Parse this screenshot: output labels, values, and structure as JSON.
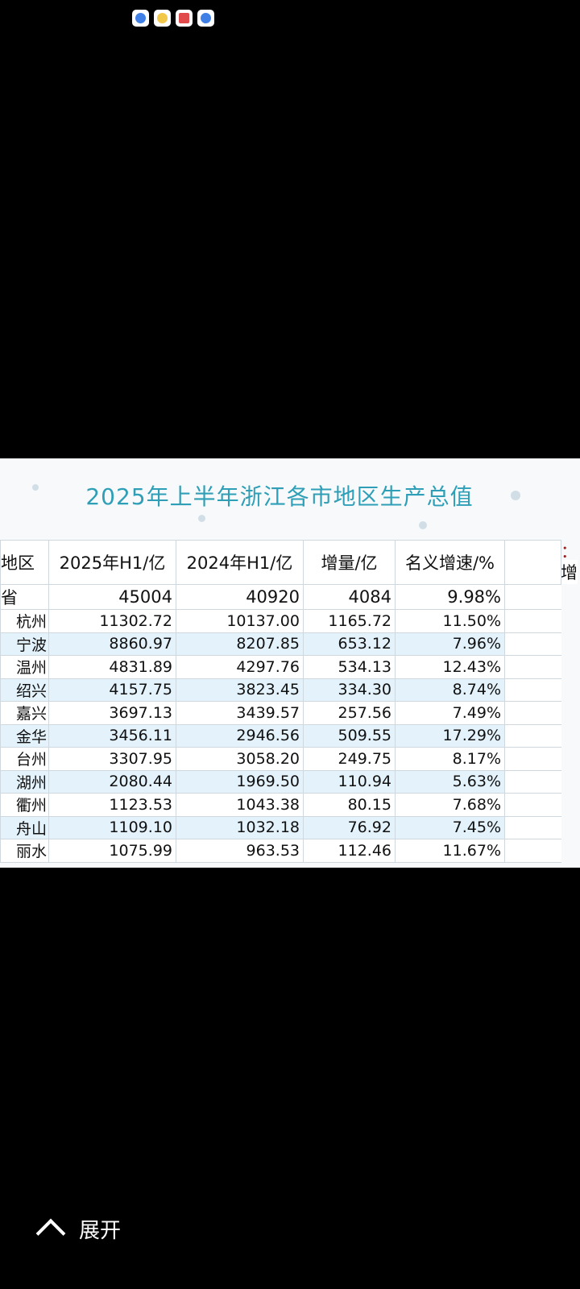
{
  "status_icons": [
    "browser-icon",
    "weather-icon",
    "news-icon",
    "browser-icon"
  ],
  "table": {
    "title": "2025年上半年浙江各市地区生产总值",
    "side_label": "制表：",
    "side_label2": "实际增",
    "headers": [
      "地区",
      "2025年H1/亿",
      "2024年H1/亿",
      "增量/亿",
      "名义增速/%"
    ],
    "province": {
      "region": "省",
      "h1_2025": "45004",
      "h1_2024": "40920",
      "increase": "4084",
      "growth": "9.98%"
    },
    "rows": [
      {
        "region": "杭州",
        "h1_2025": "11302.72",
        "h1_2024": "10137.00",
        "increase": "1165.72",
        "growth": "11.50%"
      },
      {
        "region": "宁波",
        "h1_2025": "8860.97",
        "h1_2024": "8207.85",
        "increase": "653.12",
        "growth": "7.96%"
      },
      {
        "region": "温州",
        "h1_2025": "4831.89",
        "h1_2024": "4297.76",
        "increase": "534.13",
        "growth": "12.43%"
      },
      {
        "region": "绍兴",
        "h1_2025": "4157.75",
        "h1_2024": "3823.45",
        "increase": "334.30",
        "growth": "8.74%"
      },
      {
        "region": "嘉兴",
        "h1_2025": "3697.13",
        "h1_2024": "3439.57",
        "increase": "257.56",
        "growth": "7.49%"
      },
      {
        "region": "金华",
        "h1_2025": "3456.11",
        "h1_2024": "2946.56",
        "increase": "509.55",
        "growth": "17.29%"
      },
      {
        "region": "台州",
        "h1_2025": "3307.95",
        "h1_2024": "3058.20",
        "increase": "249.75",
        "growth": "8.17%"
      },
      {
        "region": "湖州",
        "h1_2025": "2080.44",
        "h1_2024": "1969.50",
        "increase": "110.94",
        "growth": "5.63%"
      },
      {
        "region": "衢州",
        "h1_2025": "1123.53",
        "h1_2024": "1043.38",
        "increase": "80.15",
        "growth": "7.68%"
      },
      {
        "region": "舟山",
        "h1_2025": "1109.10",
        "h1_2024": "1032.18",
        "increase": "76.92",
        "growth": "7.45%"
      },
      {
        "region": "丽水",
        "h1_2025": "1075.99",
        "h1_2024": "963.53",
        "increase": "112.46",
        "growth": "11.67%"
      }
    ]
  },
  "expand_label": "展开"
}
